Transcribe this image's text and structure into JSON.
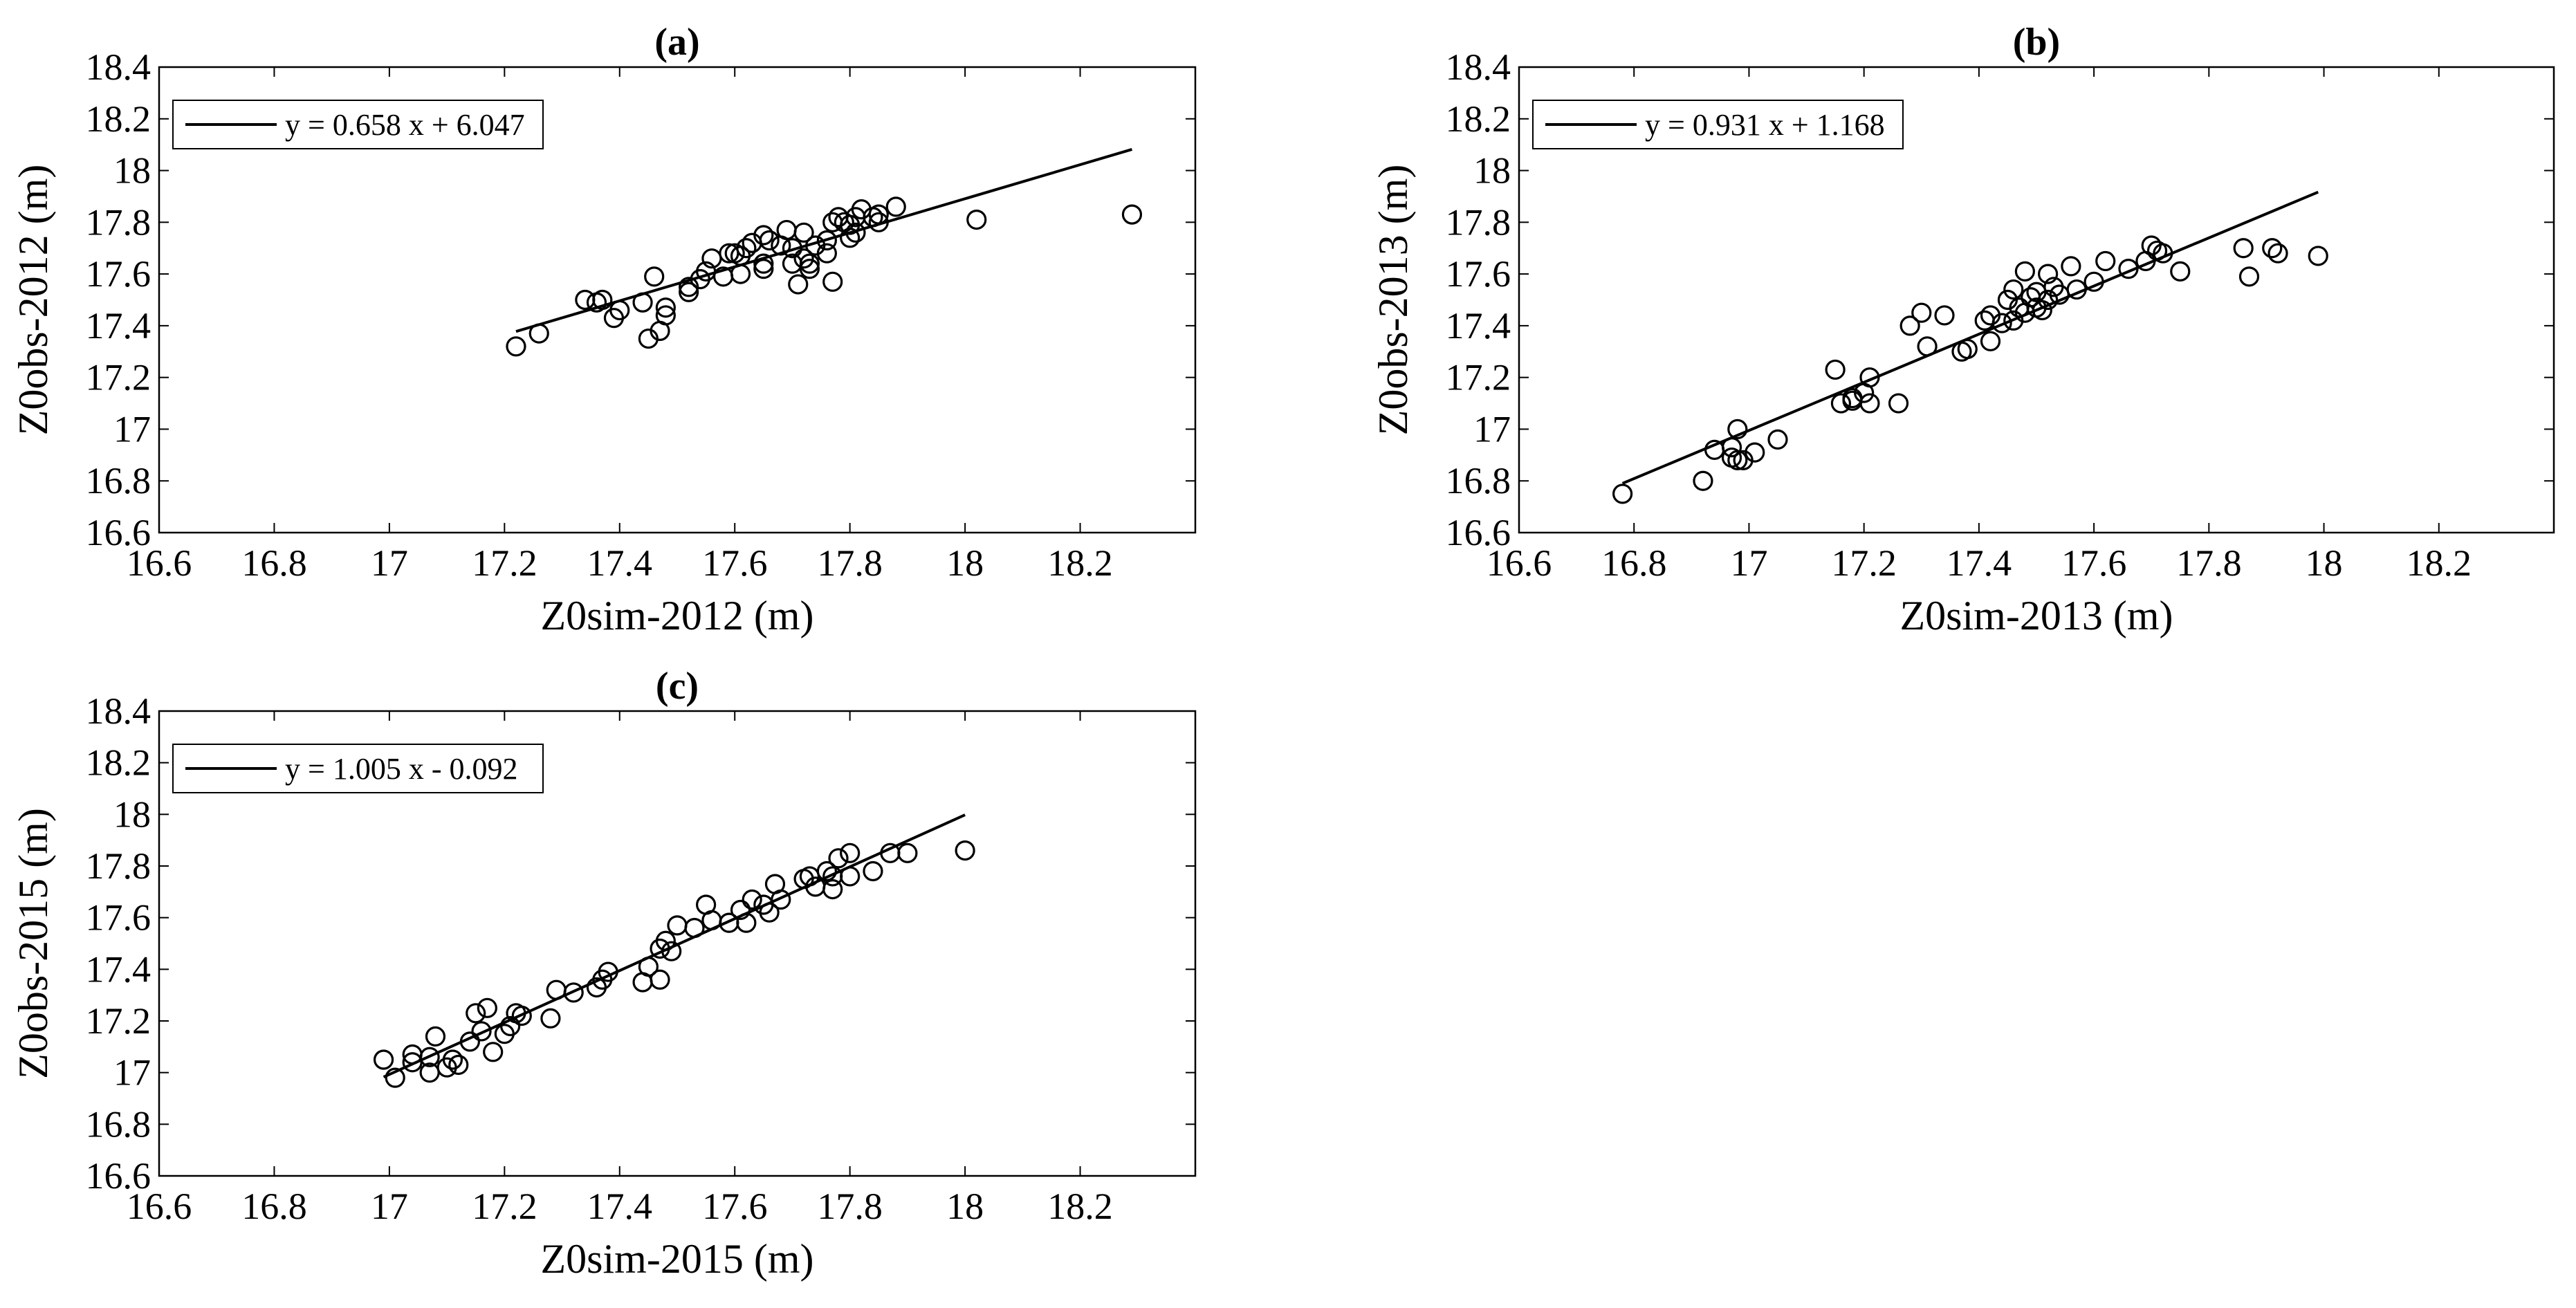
{
  "chart_data": [
    {
      "type": "scatter",
      "title": "(a)",
      "xlabel": "Z0sim-2012 (m)",
      "ylabel": "Z0obs-2012 (m)",
      "xlim": [
        16.6,
        18.4
      ],
      "ylim": [
        16.6,
        18.4
      ],
      "xticks": [
        "16.6",
        "16.8",
        "17",
        "17.2",
        "17.4",
        "17.6",
        "17.8",
        "18",
        "18.2"
      ],
      "yticks": [
        "16.6",
        "16.8",
        "17",
        "17.2",
        "17.4",
        "17.6",
        "17.8",
        "18",
        "18.2",
        "18.4"
      ],
      "grid": false,
      "legend_position": "top-left",
      "legend": "y = 0.658 x + 6.047",
      "fit": {
        "slope": 0.658,
        "intercept": 6.047,
        "x_range": [
          17.22,
          18.29
        ]
      },
      "points": [
        [
          17.22,
          17.32
        ],
        [
          17.26,
          17.37
        ],
        [
          17.34,
          17.5
        ],
        [
          17.36,
          17.49
        ],
        [
          17.37,
          17.5
        ],
        [
          17.39,
          17.43
        ],
        [
          17.4,
          17.46
        ],
        [
          17.44,
          17.49
        ],
        [
          17.45,
          17.35
        ],
        [
          17.46,
          17.59
        ],
        [
          17.47,
          17.38
        ],
        [
          17.48,
          17.44
        ],
        [
          17.48,
          17.47
        ],
        [
          17.52,
          17.53
        ],
        [
          17.52,
          17.55
        ],
        [
          17.54,
          17.58
        ],
        [
          17.55,
          17.61
        ],
        [
          17.56,
          17.66
        ],
        [
          17.58,
          17.59
        ],
        [
          17.59,
          17.68
        ],
        [
          17.6,
          17.68
        ],
        [
          17.61,
          17.6
        ],
        [
          17.61,
          17.67
        ],
        [
          17.62,
          17.7
        ],
        [
          17.63,
          17.72
        ],
        [
          17.65,
          17.62
        ],
        [
          17.65,
          17.64
        ],
        [
          17.65,
          17.75
        ],
        [
          17.66,
          17.73
        ],
        [
          17.68,
          17.71
        ],
        [
          17.69,
          17.77
        ],
        [
          17.7,
          17.7
        ],
        [
          17.7,
          17.64
        ],
        [
          17.71,
          17.56
        ],
        [
          17.72,
          17.66
        ],
        [
          17.72,
          17.76
        ],
        [
          17.73,
          17.62
        ],
        [
          17.73,
          17.64
        ],
        [
          17.74,
          17.71
        ],
        [
          17.76,
          17.73
        ],
        [
          17.76,
          17.68
        ],
        [
          17.77,
          17.57
        ],
        [
          17.77,
          17.8
        ],
        [
          17.78,
          17.82
        ],
        [
          17.79,
          17.8
        ],
        [
          17.8,
          17.74
        ],
        [
          17.8,
          17.79
        ],
        [
          17.81,
          17.76
        ],
        [
          17.81,
          17.82
        ],
        [
          17.82,
          17.85
        ],
        [
          17.84,
          17.82
        ],
        [
          17.85,
          17.8
        ],
        [
          17.85,
          17.83
        ],
        [
          17.88,
          17.86
        ],
        [
          18.02,
          17.81
        ],
        [
          18.29,
          17.83
        ]
      ]
    },
    {
      "type": "scatter",
      "title": "(b)",
      "xlabel": "Z0sim-2013 (m)",
      "ylabel": "Z0obs-2013 (m)",
      "xlim": [
        16.6,
        18.4
      ],
      "ylim": [
        16.6,
        18.4
      ],
      "xticks": [
        "16.6",
        "16.8",
        "17",
        "17.2",
        "17.4",
        "17.6",
        "17.8",
        "18",
        "18.2"
      ],
      "yticks": [
        "16.6",
        "16.8",
        "17",
        "17.2",
        "17.4",
        "17.6",
        "17.8",
        "18",
        "18.2",
        "18.4"
      ],
      "grid": false,
      "legend_position": "top-left",
      "legend": "y = 0.931 x + 1.168",
      "fit": {
        "slope": 0.931,
        "intercept": 1.168,
        "x_range": [
          16.78,
          17.99
        ]
      },
      "points": [
        [
          16.78,
          16.75
        ],
        [
          16.92,
          16.8
        ],
        [
          16.94,
          16.92
        ],
        [
          16.97,
          16.93
        ],
        [
          16.97,
          16.89
        ],
        [
          16.98,
          16.88
        ],
        [
          16.98,
          17.0
        ],
        [
          16.99,
          16.88
        ],
        [
          17.01,
          16.91
        ],
        [
          17.05,
          16.96
        ],
        [
          17.15,
          17.23
        ],
        [
          17.16,
          17.1
        ],
        [
          17.18,
          17.11
        ],
        [
          17.18,
          17.12
        ],
        [
          17.2,
          17.14
        ],
        [
          17.21,
          17.1
        ],
        [
          17.21,
          17.2
        ],
        [
          17.26,
          17.1
        ],
        [
          17.28,
          17.4
        ],
        [
          17.3,
          17.45
        ],
        [
          17.31,
          17.32
        ],
        [
          17.34,
          17.44
        ],
        [
          17.37,
          17.3
        ],
        [
          17.38,
          17.31
        ],
        [
          17.41,
          17.42
        ],
        [
          17.42,
          17.34
        ],
        [
          17.42,
          17.44
        ],
        [
          17.44,
          17.41
        ],
        [
          17.45,
          17.5
        ],
        [
          17.46,
          17.42
        ],
        [
          17.46,
          17.54
        ],
        [
          17.47,
          17.47
        ],
        [
          17.48,
          17.45
        ],
        [
          17.48,
          17.61
        ],
        [
          17.49,
          17.51
        ],
        [
          17.5,
          17.53
        ],
        [
          17.5,
          17.47
        ],
        [
          17.51,
          17.46
        ],
        [
          17.52,
          17.5
        ],
        [
          17.52,
          17.6
        ],
        [
          17.53,
          17.55
        ],
        [
          17.54,
          17.52
        ],
        [
          17.56,
          17.63
        ],
        [
          17.57,
          17.54
        ],
        [
          17.6,
          17.57
        ],
        [
          17.62,
          17.65
        ],
        [
          17.66,
          17.62
        ],
        [
          17.69,
          17.65
        ],
        [
          17.7,
          17.71
        ],
        [
          17.71,
          17.69
        ],
        [
          17.72,
          17.68
        ],
        [
          17.75,
          17.61
        ],
        [
          17.86,
          17.7
        ],
        [
          17.87,
          17.59
        ],
        [
          17.91,
          17.7
        ],
        [
          17.92,
          17.68
        ],
        [
          17.99,
          17.67
        ]
      ]
    },
    {
      "type": "scatter",
      "title": "(c)",
      "xlabel": "Z0sim-2015 (m)",
      "ylabel": "Z0obs-2015 (m)",
      "xlim": [
        16.6,
        18.4
      ],
      "ylim": [
        16.6,
        18.4
      ],
      "xticks": [
        "16.6",
        "16.8",
        "17",
        "17.2",
        "17.4",
        "17.6",
        "17.8",
        "18",
        "18.2"
      ],
      "yticks": [
        "16.6",
        "16.8",
        "17",
        "17.2",
        "17.4",
        "17.6",
        "17.8",
        "18",
        "18.2",
        "18.4"
      ],
      "grid": false,
      "legend_position": "top-left",
      "legend": "y = 1.005 x - 0.092",
      "fit": {
        "slope": 1.005,
        "intercept": -0.092,
        "x_range": [
          16.99,
          18.0
        ]
      },
      "points": [
        [
          16.99,
          17.05
        ],
        [
          17.01,
          16.98
        ],
        [
          17.04,
          17.04
        ],
        [
          17.04,
          17.07
        ],
        [
          17.07,
          17.0
        ],
        [
          17.07,
          17.06
        ],
        [
          17.08,
          17.14
        ],
        [
          17.1,
          17.02
        ],
        [
          17.11,
          17.05
        ],
        [
          17.12,
          17.03
        ],
        [
          17.14,
          17.12
        ],
        [
          17.15,
          17.23
        ],
        [
          17.16,
          17.16
        ],
        [
          17.17,
          17.25
        ],
        [
          17.18,
          17.08
        ],
        [
          17.2,
          17.15
        ],
        [
          17.21,
          17.18
        ],
        [
          17.22,
          17.23
        ],
        [
          17.23,
          17.22
        ],
        [
          17.28,
          17.21
        ],
        [
          17.29,
          17.32
        ],
        [
          17.32,
          17.31
        ],
        [
          17.36,
          17.33
        ],
        [
          17.37,
          17.36
        ],
        [
          17.38,
          17.39
        ],
        [
          17.44,
          17.35
        ],
        [
          17.45,
          17.41
        ],
        [
          17.47,
          17.36
        ],
        [
          17.47,
          17.48
        ],
        [
          17.48,
          17.51
        ],
        [
          17.49,
          17.47
        ],
        [
          17.5,
          17.57
        ],
        [
          17.53,
          17.56
        ],
        [
          17.55,
          17.65
        ],
        [
          17.56,
          17.59
        ],
        [
          17.59,
          17.58
        ],
        [
          17.61,
          17.63
        ],
        [
          17.62,
          17.58
        ],
        [
          17.63,
          17.67
        ],
        [
          17.65,
          17.65
        ],
        [
          17.66,
          17.62
        ],
        [
          17.67,
          17.73
        ],
        [
          17.68,
          17.67
        ],
        [
          17.72,
          17.75
        ],
        [
          17.73,
          17.76
        ],
        [
          17.74,
          17.72
        ],
        [
          17.76,
          17.78
        ],
        [
          17.77,
          17.71
        ],
        [
          17.77,
          17.76
        ],
        [
          17.78,
          17.83
        ],
        [
          17.8,
          17.76
        ],
        [
          17.8,
          17.85
        ],
        [
          17.84,
          17.78
        ],
        [
          17.87,
          17.85
        ],
        [
          17.9,
          17.85
        ],
        [
          18.0,
          17.86
        ]
      ]
    }
  ]
}
